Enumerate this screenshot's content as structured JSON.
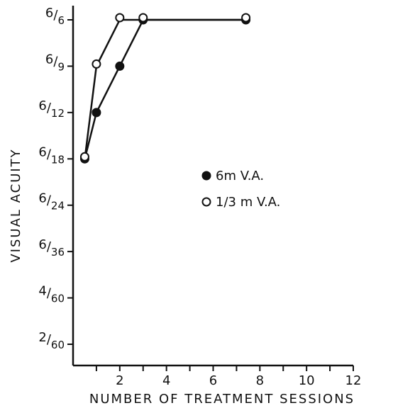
{
  "chart_data": {
    "type": "line",
    "title": "",
    "xlabel": "NUMBER OF TREATMENT SESSIONS",
    "ylabel": "VISUAL ACUITY",
    "xlim": [
      0,
      12
    ],
    "x_ticks": [
      2,
      4,
      6,
      8,
      10,
      12
    ],
    "y_categories": [
      "2/60",
      "4/60",
      "6/36",
      "6/24",
      "6/18",
      "6/12",
      "6/9",
      "6/6"
    ],
    "grid": false,
    "legend_position": "center-right",
    "series": [
      {
        "name": "6m V.A.",
        "marker": "filled-circle",
        "color": "#111111",
        "points": [
          {
            "x": 0.5,
            "y": "6/18"
          },
          {
            "x": 1,
            "y": "6/12"
          },
          {
            "x": 2,
            "y": "6/9"
          },
          {
            "x": 3,
            "y": "6/6"
          },
          {
            "x": 7.4,
            "y": "6/6"
          }
        ]
      },
      {
        "name": "1/3 m V.A.",
        "marker": "open-circle",
        "color": "#111111",
        "points": [
          {
            "x": 0.5,
            "y": "6/18"
          },
          {
            "x": 1,
            "y": "6/9"
          },
          {
            "x": 2,
            "y": "6/6"
          },
          {
            "x": 3,
            "y": "6/6"
          },
          {
            "x": 7.4,
            "y": "6/6"
          }
        ]
      }
    ]
  }
}
